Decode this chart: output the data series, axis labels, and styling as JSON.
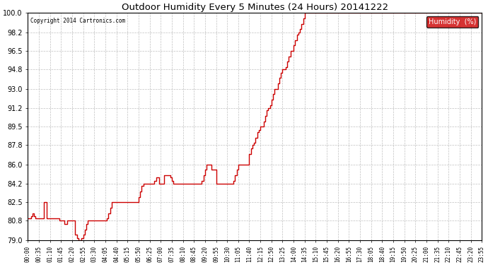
{
  "title": "Outdoor Humidity Every 5 Minutes (24 Hours) 20141222",
  "copyright": "Copyright 2014 Cartronics.com",
  "legend_label": "Humidity  (%)",
  "line_color": "#cc0000",
  "bg_color": "#ffffff",
  "grid_color": "#c0c0c0",
  "ylim": [
    79.0,
    100.0
  ],
  "yticks": [
    79.0,
    80.8,
    82.5,
    84.2,
    86.0,
    87.8,
    89.5,
    91.2,
    93.0,
    94.8,
    96.5,
    98.2,
    100.0
  ],
  "humidity": [
    81.0,
    81.0,
    81.2,
    81.5,
    81.2,
    81.0,
    81.0,
    81.0,
    81.0,
    81.0,
    82.5,
    82.5,
    81.0,
    81.0,
    81.0,
    81.0,
    81.0,
    81.0,
    81.0,
    81.0,
    80.8,
    80.8,
    80.8,
    80.5,
    80.5,
    80.8,
    80.8,
    80.8,
    80.8,
    80.8,
    79.5,
    79.2,
    79.0,
    79.0,
    79.2,
    79.5,
    80.0,
    80.5,
    80.8,
    80.8,
    80.8,
    80.8,
    80.8,
    80.8,
    80.8,
    80.8,
    80.8,
    80.8,
    80.8,
    80.8,
    81.0,
    81.5,
    82.0,
    82.5,
    82.5,
    82.5,
    82.5,
    82.5,
    82.5,
    82.5,
    82.5,
    82.5,
    82.5,
    82.5,
    82.5,
    82.5,
    82.5,
    82.5,
    82.5,
    82.5,
    83.0,
    83.5,
    84.0,
    84.2,
    84.2,
    84.2,
    84.2,
    84.2,
    84.2,
    84.2,
    84.5,
    84.8,
    84.8,
    84.2,
    84.2,
    84.2,
    85.0,
    85.0,
    85.0,
    85.0,
    84.8,
    84.5,
    84.2,
    84.2,
    84.2,
    84.2,
    84.2,
    84.2,
    84.2,
    84.2,
    84.2,
    84.2,
    84.2,
    84.2,
    84.2,
    84.2,
    84.2,
    84.2,
    84.2,
    84.2,
    84.5,
    85.0,
    85.5,
    86.0,
    86.0,
    86.0,
    85.5,
    85.5,
    85.5,
    84.2,
    84.2,
    84.2,
    84.2,
    84.2,
    84.2,
    84.2,
    84.2,
    84.2,
    84.2,
    84.2,
    84.5,
    85.0,
    85.5,
    86.0,
    86.0,
    86.0,
    86.0,
    86.0,
    86.0,
    86.0,
    87.0,
    87.5,
    87.8,
    88.0,
    88.5,
    89.0,
    89.2,
    89.5,
    89.5,
    90.0,
    90.5,
    91.0,
    91.2,
    91.5,
    92.0,
    92.5,
    93.0,
    93.0,
    93.5,
    94.0,
    94.5,
    94.8,
    94.8,
    95.0,
    95.5,
    96.0,
    96.5,
    96.5,
    97.0,
    97.5,
    98.0,
    98.2,
    98.5,
    99.0,
    99.5,
    100.0,
    100.0,
    100.0,
    100.0,
    100.0,
    100.0,
    100.0,
    100.0,
    100.0,
    100.0,
    100.0,
    100.0,
    100.0,
    100.0,
    100.0,
    100.0,
    100.0,
    100.0,
    100.0,
    100.0,
    100.0,
    100.0,
    100.0,
    100.0,
    100.0,
    100.0,
    100.0,
    100.0,
    100.0,
    100.0,
    100.0,
    100.0,
    100.0,
    100.0,
    100.0,
    100.0,
    100.0,
    100.0,
    100.0,
    100.0,
    100.0,
    100.0,
    100.0,
    100.0,
    100.0,
    100.0,
    100.0,
    100.0,
    100.0,
    100.0,
    100.0,
    100.0,
    100.0,
    100.0,
    100.0,
    100.0,
    100.0,
    100.0,
    100.0,
    100.0,
    100.0,
    100.0,
    100.0,
    100.0,
    100.0,
    100.0,
    100.0,
    100.0,
    100.0,
    100.0,
    100.0,
    100.0,
    100.0,
    100.0,
    100.0,
    100.0,
    100.0,
    100.0,
    100.0,
    100.0,
    100.0,
    100.0,
    100.0,
    100.0,
    100.0,
    100.0,
    100.0,
    100.0,
    100.0,
    100.0,
    100.0,
    100.0,
    100.0,
    100.0,
    100.0,
    100.0,
    100.0,
    100.0,
    100.0,
    100.0,
    100.0,
    100.0,
    100.0,
    100.0,
    100.0,
    100.0,
    100.0,
    100.0,
    100.0,
    100.0,
    100.0,
    100.0,
    100.0
  ],
  "xtick_labels": [
    "00:00",
    "00:35",
    "01:10",
    "01:45",
    "02:20",
    "02:55",
    "03:30",
    "04:05",
    "04:40",
    "05:15",
    "05:50",
    "06:25",
    "07:00",
    "07:35",
    "08:10",
    "08:45",
    "09:20",
    "09:55",
    "10:30",
    "11:05",
    "11:40",
    "12:15",
    "12:50",
    "13:25",
    "14:00",
    "14:35",
    "15:10",
    "15:45",
    "16:20",
    "16:55",
    "17:30",
    "18:05",
    "18:40",
    "19:15",
    "19:50",
    "20:25",
    "21:00",
    "21:35",
    "22:10",
    "22:45",
    "23:20",
    "23:55"
  ]
}
